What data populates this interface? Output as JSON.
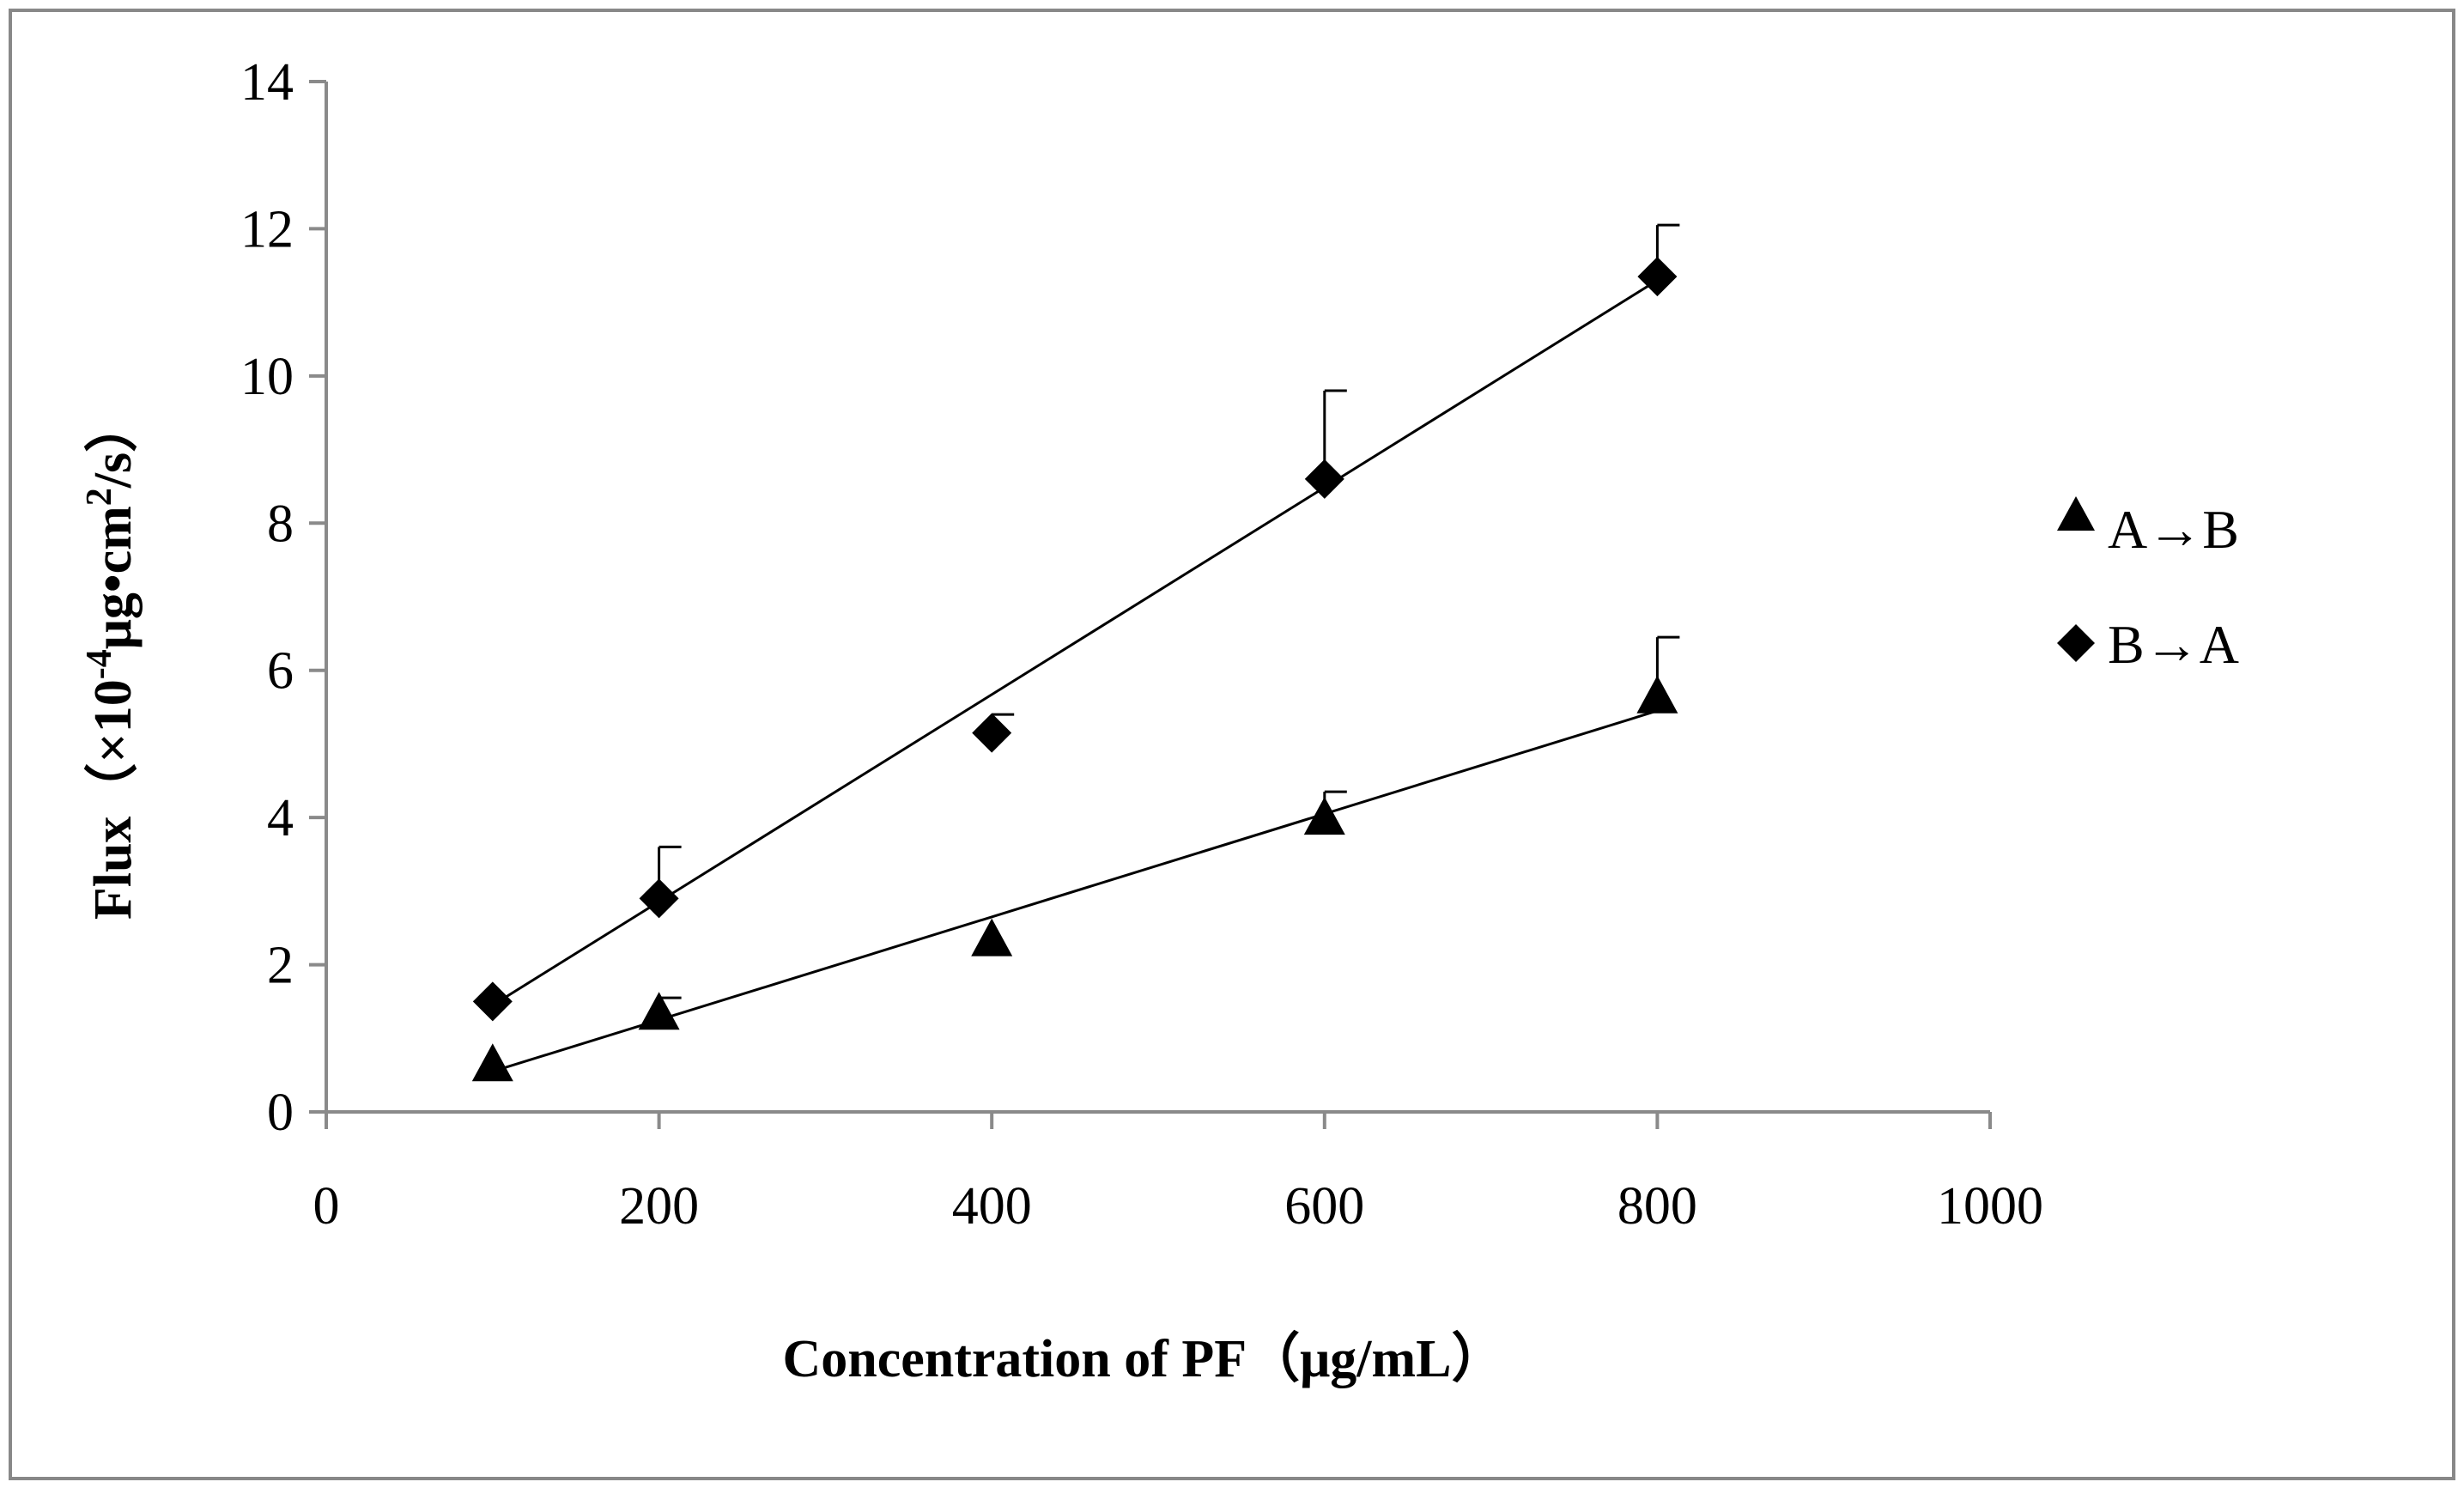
{
  "chart_data": {
    "type": "scatter",
    "title": "",
    "xlabel": "Concentration of PF（μg/mL）",
    "ylabel_base": "Flux（×10",
    "ylabel_exp": "-4",
    "ylabel_mid": "μg•cm",
    "ylabel_exp2": "2",
    "ylabel_end": "/s）",
    "xlim": [
      0,
      1000
    ],
    "ylim": [
      0,
      14
    ],
    "x_ticks": [
      "0",
      "200",
      "400",
      "600",
      "800",
      "1000"
    ],
    "y_ticks": [
      "0",
      "2",
      "4",
      "6",
      "8",
      "10",
      "12",
      "14"
    ],
    "legend_position": "right",
    "series": [
      {
        "name": "A→B",
        "marker": "triangle",
        "x": [
          100,
          200,
          400,
          600,
          800
        ],
        "y": [
          0.65,
          1.35,
          2.35,
          4.0,
          5.65
        ],
        "error_plus": [
          0.0,
          0.2,
          0.0,
          0.35,
          0.8
        ],
        "trendline": [
          [
            100,
            0.55
          ],
          [
            800,
            5.45
          ]
        ]
      },
      {
        "name": "B→A",
        "marker": "diamond",
        "x": [
          100,
          200,
          400,
          600,
          800
        ],
        "y": [
          1.5,
          2.9,
          5.15,
          8.6,
          11.35
        ],
        "error_plus": [
          0.0,
          0.7,
          0.25,
          1.2,
          0.7
        ],
        "trendline": [
          [
            100,
            1.45
          ],
          [
            800,
            11.3
          ]
        ]
      }
    ]
  }
}
